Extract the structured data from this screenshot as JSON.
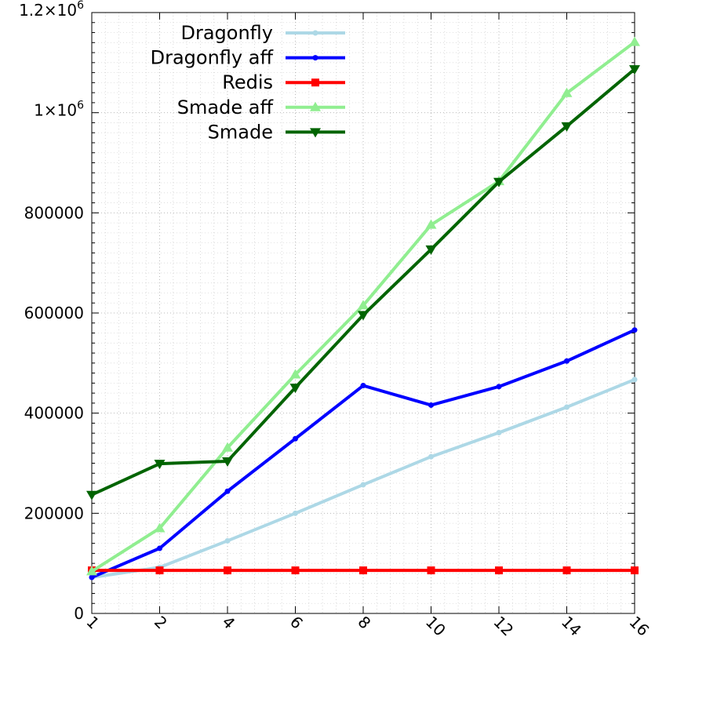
{
  "chart_data": {
    "type": "line",
    "title": "",
    "xlabel": "",
    "ylabel": "",
    "categories": [
      "1",
      "2",
      "4",
      "6",
      "8",
      "10",
      "12",
      "14",
      "16"
    ],
    "ylim": [
      0,
      1200000
    ],
    "yticks": [
      {
        "value": 0,
        "label": "0"
      },
      {
        "value": 200000,
        "label": "200000"
      },
      {
        "value": 400000,
        "label": "400000"
      },
      {
        "value": 600000,
        "label": "600000"
      },
      {
        "value": 800000,
        "label": "800000"
      },
      {
        "value": 1000000,
        "label": "1×10",
        "sup": "6"
      },
      {
        "value": 1200000,
        "label": "1.2×10",
        "sup": "6"
      }
    ],
    "grid": "dotted",
    "legend_position": "top-left",
    "series": [
      {
        "name": "Dragonfly",
        "color": "#add8e6",
        "marker": "circle",
        "values": [
          72000,
          92000,
          145000,
          200000,
          257000,
          313000,
          361000,
          412000,
          467000
        ]
      },
      {
        "name": "Dragonfly aff",
        "color": "#0000ff",
        "marker": "circle",
        "values": [
          72000,
          130000,
          244000,
          349000,
          455000,
          416000,
          453000,
          504000,
          566000
        ]
      },
      {
        "name": "Redis",
        "color": "#ff0000",
        "marker": "square",
        "values": [
          86000,
          86000,
          86000,
          86000,
          86000,
          86000,
          86000,
          86000,
          86000
        ]
      },
      {
        "name": "Smade aff",
        "color": "#90ee90",
        "marker": "triangle-up",
        "values": [
          84000,
          170000,
          331000,
          477000,
          615000,
          776000,
          863000,
          1039000,
          1141000
        ]
      },
      {
        "name": "Smade",
        "color": "#006400",
        "marker": "triangle-down",
        "values": [
          237000,
          299000,
          304000,
          451000,
          596000,
          727000,
          862000,
          973000,
          1087000
        ]
      }
    ]
  }
}
